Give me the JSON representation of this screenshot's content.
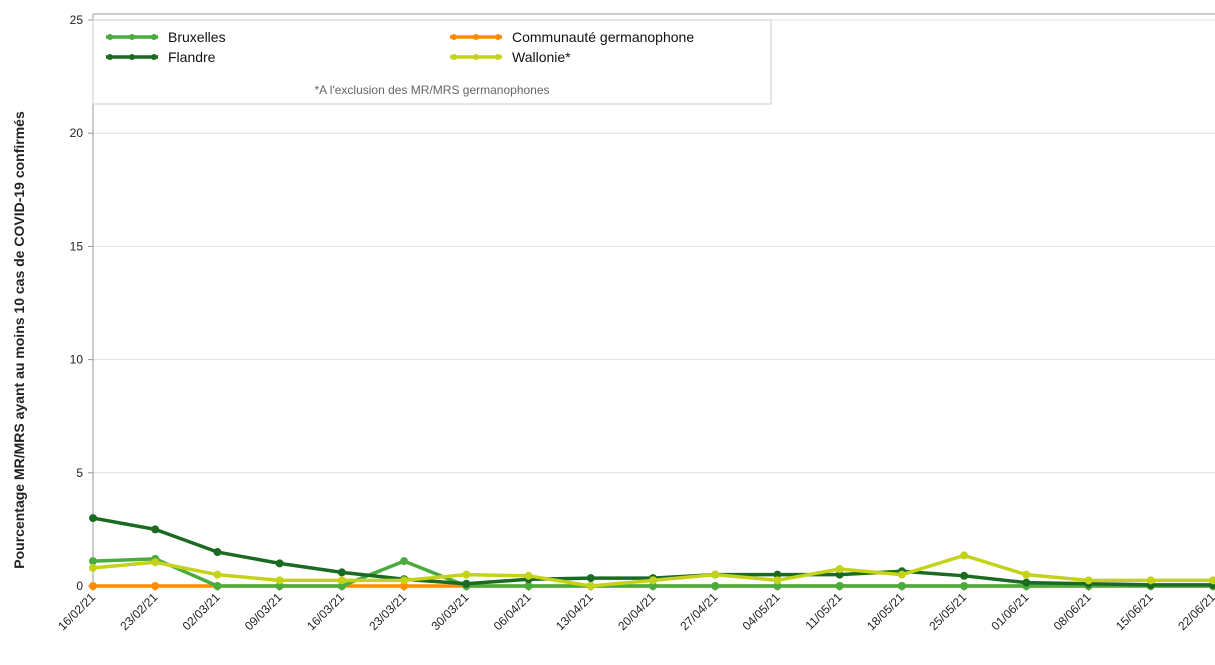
{
  "chart_data": {
    "type": "line",
    "title": "",
    "xlabel": "",
    "ylabel": "Pourcentage MR/MRS ayant au moins 10 cas de COVID-19 confirmés",
    "ylim": [
      0,
      25
    ],
    "yticks": [
      0,
      5,
      10,
      15,
      20,
      25
    ],
    "grid": "horizontal",
    "legend_position": "top-left",
    "legend_note": "*A l'exclusion des MR/MRS germanophones",
    "categories": [
      "16/02/21",
      "23/02/21",
      "02/03/21",
      "09/03/21",
      "16/03/21",
      "23/03/21",
      "30/03/21",
      "06/04/21",
      "13/04/21",
      "20/04/21",
      "27/04/21",
      "04/05/21",
      "11/05/21",
      "18/05/21",
      "25/05/21",
      "01/06/21",
      "08/06/21",
      "15/06/21",
      "22/06/21"
    ],
    "series": [
      {
        "name": "Bruxelles",
        "color": "#4aac3f",
        "values": [
          1.1,
          1.2,
          0.0,
          0.0,
          0.0,
          1.1,
          0.0,
          0.0,
          0.0,
          0.0,
          0.0,
          0.0,
          0.0,
          0.0,
          0.0,
          0.0,
          0.0,
          0.0,
          0.0
        ]
      },
      {
        "name": "Flandre",
        "color": "#1a6b21",
        "values": [
          3.0,
          2.5,
          1.5,
          1.0,
          0.6,
          0.3,
          0.1,
          0.3,
          0.35,
          0.35,
          0.5,
          0.5,
          0.5,
          0.65,
          0.45,
          0.15,
          0.1,
          0.05,
          0.05
        ]
      },
      {
        "name": "Communauté germanophone",
        "color": "#ff8c00",
        "values": [
          0,
          0,
          0,
          0,
          0,
          0,
          0,
          0,
          0,
          0,
          0,
          0,
          0,
          0,
          0,
          0,
          0,
          0,
          0
        ]
      },
      {
        "name": "Wallonie*",
        "color": "#c4d31a",
        "values": [
          0.8,
          1.05,
          0.5,
          0.25,
          0.25,
          0.25,
          0.5,
          0.45,
          0.0,
          0.25,
          0.5,
          0.25,
          0.75,
          0.5,
          1.35,
          0.5,
          0.25,
          0.25,
          0.25
        ]
      }
    ]
  }
}
